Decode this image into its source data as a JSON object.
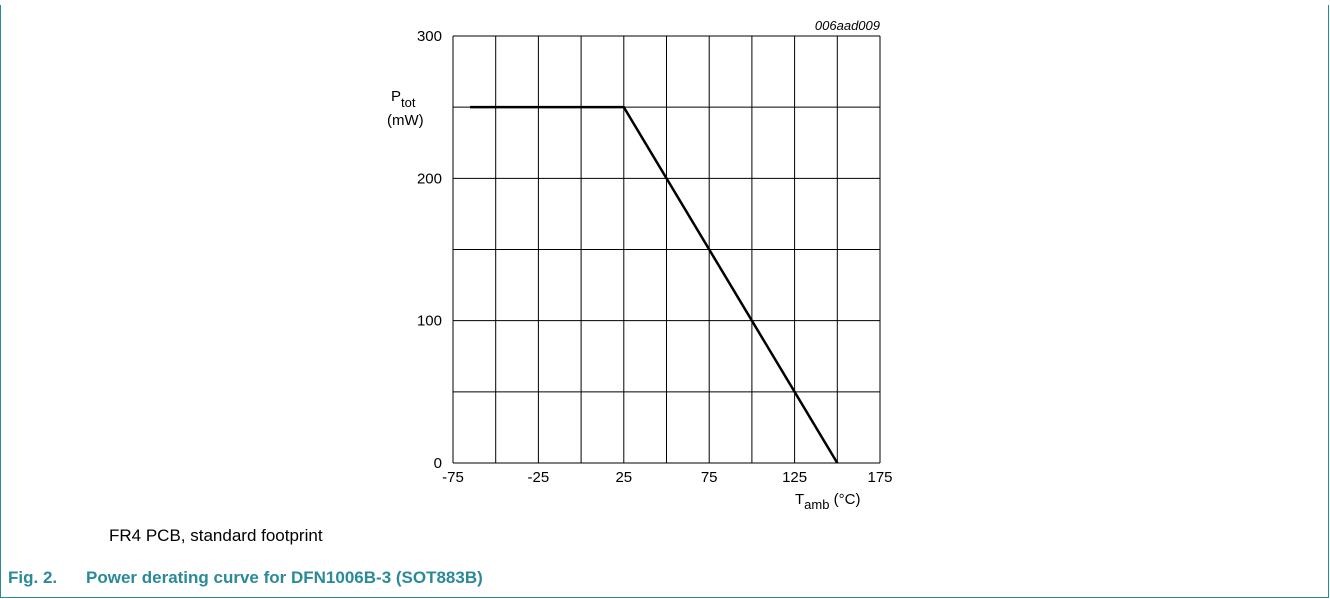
{
  "chart_data": {
    "type": "line",
    "figure_code": "006aad009",
    "ylabel": {
      "symbol": "P",
      "subscript": "tot",
      "unit": "(mW)"
    },
    "xlabel": {
      "symbol": "T",
      "subscript": "amb",
      "unit": " (°C)"
    },
    "xlim": [
      -75,
      175
    ],
    "ylim": [
      0,
      300
    ],
    "x_ticks": [
      -75,
      -25,
      25,
      75,
      125,
      175
    ],
    "y_ticks": [
      0,
      100,
      200,
      300
    ],
    "x_grid_step": 25,
    "y_grid_step": 50,
    "grid": true,
    "series": [
      {
        "x": [
          -65,
          25,
          150
        ],
        "y": [
          250,
          250,
          0
        ]
      }
    ]
  },
  "note": "FR4 PCB, standard footprint",
  "caption": {
    "number": "Fig. 2.",
    "title": "Power derating curve for DFN1006B-3 (SOT883B)"
  },
  "colors": {
    "accent": "#2a8a99"
  }
}
